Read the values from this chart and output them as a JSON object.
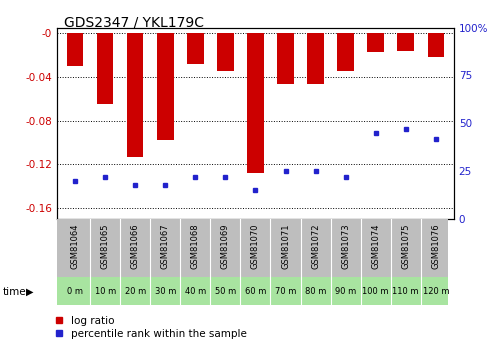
{
  "title": "GDS2347 / YKL179C",
  "samples": [
    "GSM81064",
    "GSM81065",
    "GSM81066",
    "GSM81067",
    "GSM81068",
    "GSM81069",
    "GSM81070",
    "GSM81071",
    "GSM81072",
    "GSM81073",
    "GSM81074",
    "GSM81075",
    "GSM81076"
  ],
  "times": [
    "0 m",
    "10 m",
    "20 m",
    "30 m",
    "40 m",
    "50 m",
    "60 m",
    "70 m",
    "80 m",
    "90 m",
    "100 m",
    "110 m",
    "120 m"
  ],
  "log_ratios": [
    -0.03,
    -0.065,
    -0.113,
    -0.098,
    -0.028,
    -0.035,
    -0.128,
    -0.047,
    -0.047,
    -0.035,
    -0.017,
    -0.016,
    -0.022
  ],
  "percentile_ranks": [
    20,
    22,
    18,
    18,
    22,
    22,
    15,
    25,
    25,
    22,
    45,
    47,
    42
  ],
  "ylim_left": [
    -0.17,
    0.005
  ],
  "ylim_right": [
    0,
    100
  ],
  "bar_color": "#CC0000",
  "dot_color": "#2222CC",
  "label_color_left": "#CC0000",
  "label_color_right": "#2222CC",
  "bg_color_samples": "#BEBEBE",
  "bg_color_time": "#A8E4A0",
  "bar_width": 0.55,
  "legend_log": "log ratio",
  "legend_pct": "percentile rank within the sample",
  "time_label": "time",
  "yticks_left": [
    -0.16,
    -0.12,
    -0.08,
    -0.04,
    0.0
  ],
  "yticklabels_left": [
    "-0.16",
    "-0.12",
    "-0.08",
    "-0.04",
    "-0"
  ],
  "yticks_right": [
    0,
    25,
    50,
    75,
    100
  ],
  "yticklabels_right": [
    "0",
    "25",
    "50",
    "75",
    "100%"
  ]
}
